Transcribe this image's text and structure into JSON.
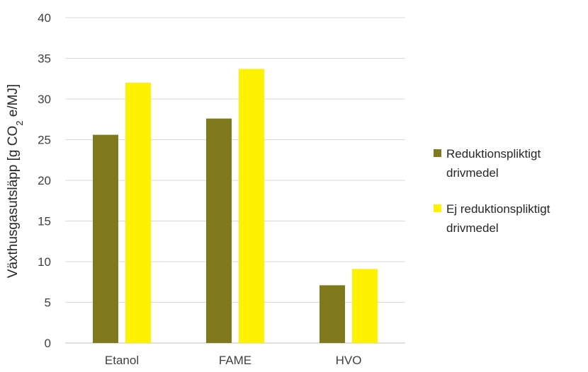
{
  "chart_data": {
    "type": "bar",
    "title": "",
    "xlabel": "",
    "ylabel": "Växthusgasutsläpp [g CO",
    "ylabel_sub": "2",
    "ylabel_suffix": " e/MJ]",
    "ylim": [
      0,
      40
    ],
    "yticks": [
      0,
      5,
      10,
      15,
      20,
      25,
      30,
      35,
      40
    ],
    "grid": true,
    "legend_position": "right",
    "categories": [
      "Etanol",
      "FAME",
      "HVO"
    ],
    "series": [
      {
        "name": "Reduktionspliktigt drivmedel",
        "legend_lines": [
          "Reduktionspliktigt",
          "drivmedel"
        ],
        "color": "#7F7A1E",
        "values": [
          25.6,
          27.6,
          7.1
        ]
      },
      {
        "name": "Ej reduktionspliktigt drivmedel",
        "legend_lines": [
          "Ej reduktionspliktigt",
          "drivmedel"
        ],
        "color": "#FFF200",
        "values": [
          32.0,
          33.7,
          9.1
        ]
      }
    ]
  },
  "colors": {
    "grid": "#d9d9d9",
    "axis": "#bfbfbf",
    "text": "#404040"
  }
}
